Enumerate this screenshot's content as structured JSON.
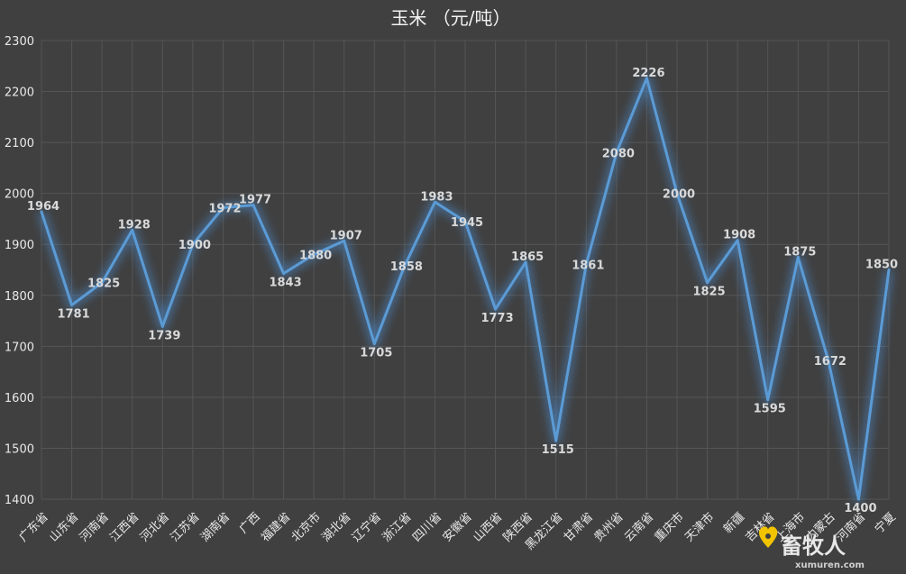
{
  "chart_data": {
    "type": "line",
    "title": "玉米 （元/吨）",
    "xlabel": "",
    "ylabel": "",
    "ylim": [
      1400,
      2300
    ],
    "yticks": [
      1400,
      1500,
      1600,
      1700,
      1800,
      1900,
      2000,
      2100,
      2200,
      2300
    ],
    "grid": true,
    "legend": "none",
    "line_color": "#5b9bd5",
    "glow_color": "#4a90d9",
    "categories": [
      "广东省",
      "山东省",
      "河南省",
      "江西省",
      "河北省",
      "江苏省",
      "湖南省",
      "广西",
      "福建省",
      "北京市",
      "湖北省",
      "辽宁省",
      "浙江省",
      "四川省",
      "安徽省",
      "山西省",
      "陕西省",
      "黑龙江省",
      "甘肃省",
      "贵州省",
      "云南省",
      "重庆市",
      "天津市",
      "新疆",
      "吉林省",
      "上海市",
      "内蒙古",
      "河南省",
      "宁夏"
    ],
    "series": [
      {
        "values": [
          1964,
          1781,
          1825,
          1928,
          1739,
          1900,
          1972,
          1977,
          1843,
          1880,
          1907,
          1705,
          1858,
          1983,
          1945,
          1773,
          1865,
          1515,
          1861,
          2080,
          2226,
          2000,
          1825,
          1908,
          1595,
          1875,
          1672,
          1400,
          1850
        ]
      }
    ]
  },
  "watermark": {
    "brand_text": "畜牧人",
    "brand_url": "xumuren.com"
  }
}
